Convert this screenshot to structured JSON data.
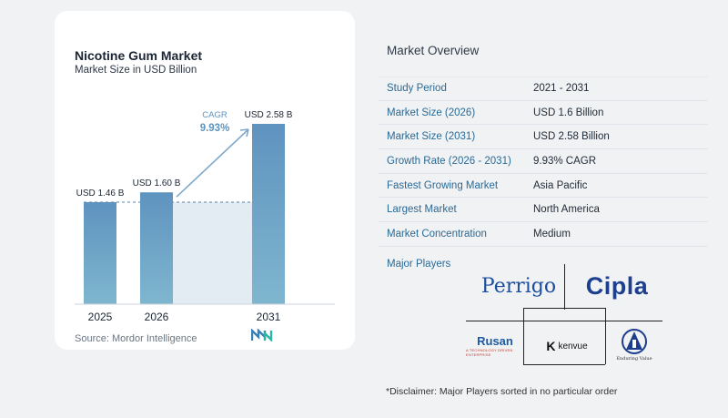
{
  "chart_data": {
    "type": "bar",
    "title": "Nicotine Gum Market",
    "subtitle": "Market Size in USD Billion",
    "categories": [
      "2025",
      "2026",
      "2031"
    ],
    "values": [
      1.46,
      1.6,
      2.58
    ],
    "data_labels": [
      "USD 1.46 B",
      "USD 1.60 B",
      "USD 2.58 B"
    ],
    "cagr_label": "CAGR",
    "cagr_value": "9.93%",
    "bar_color": "#5f93bf",
    "bar_color_bottom": "#7fb6cf",
    "shade_color": "#e4ecf3",
    "arrow_color": "#7fa9cc",
    "ylim": [
      0,
      2.58
    ],
    "grid": false
  },
  "source": "Source:  Mordor Intelligence",
  "overview": {
    "title": "Market Overview",
    "rows": [
      {
        "key": "Study Period",
        "value": "2021 - 2031"
      },
      {
        "key": "Market Size (2026)",
        "value": "USD 1.6 Billion"
      },
      {
        "key": "Market Size (2031)",
        "value": "USD 2.58 Billion"
      },
      {
        "key": "Growth Rate (2026 - 2031)",
        "value": "9.93% CAGR"
      },
      {
        "key": "Fastest Growing Market",
        "value": "Asia Pacific"
      },
      {
        "key": "Largest Market",
        "value": "North America"
      },
      {
        "key": "Market Concentration",
        "value": "Medium"
      }
    ]
  },
  "players": {
    "title": "Major Players",
    "perrigo": "Perrigo",
    "cipla": "Cipla",
    "rusan": "Rusan",
    "rusan_tag": "A TECHNOLOGY DRIVEN ENTERPRISE",
    "kenvue": "kenvue",
    "itc_tag": "Enduring Value"
  },
  "disclaimer": "*Disclaimer: Major Players sorted in no particular order"
}
